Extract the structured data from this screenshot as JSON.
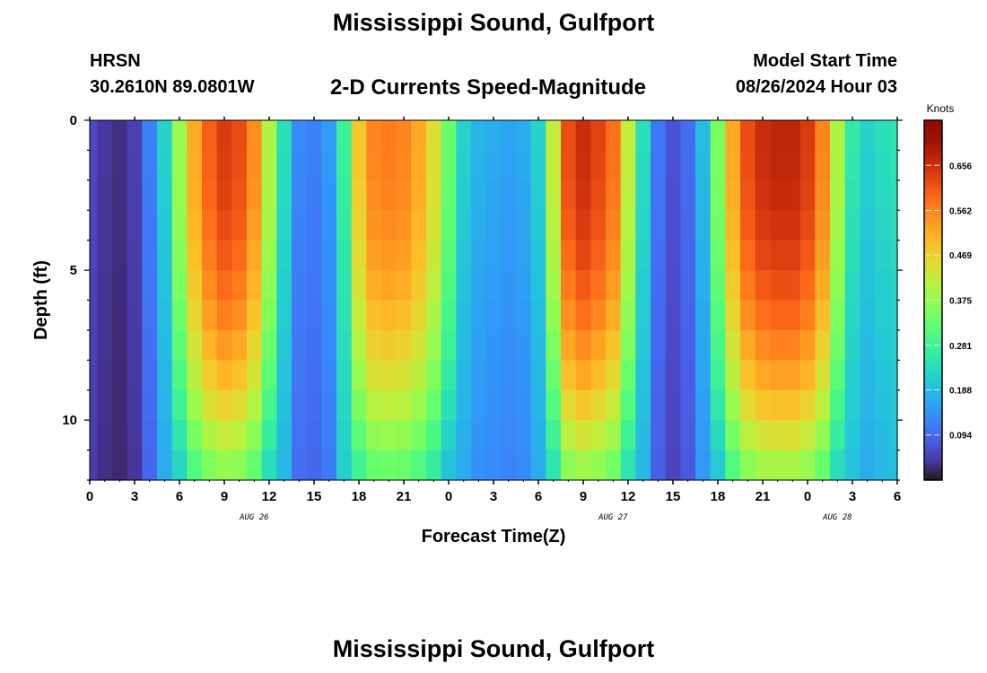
{
  "header": {
    "title": "Mississippi Sound, Gulfport",
    "station": "HRSN",
    "coords": "30.2610N  89.0801W",
    "subtitle": "2-D Currents Speed-Magnitude",
    "model_start_label": "Model Start Time",
    "model_start_value": "08/26/2024 Hour 03"
  },
  "footer": {
    "title": "Mississippi Sound, Gulfport"
  },
  "chart_data": {
    "type": "heatmap",
    "xlabel": "Forecast Time(Z)",
    "ylabel": "Depth (ft)",
    "x_range_hours": [
      0,
      54
    ],
    "x_tick_labels": [
      "0",
      "3",
      "6",
      "9",
      "12",
      "15",
      "18",
      "21",
      "0",
      "3",
      "6",
      "9",
      "12",
      "15",
      "18",
      "21",
      "0",
      "3",
      "6"
    ],
    "date_labels": [
      "AUG 26",
      "AUG 27",
      "AUG 28"
    ],
    "date_label_hours": [
      11,
      35,
      50
    ],
    "y_range_ft": [
      0,
      12
    ],
    "y_reversed": true,
    "y_tick_labels": [
      "0",
      "5",
      "10"
    ],
    "y_tick_values": [
      0,
      5,
      10
    ],
    "depth_levels_ft": [
      0.5,
      1.5,
      2.5,
      3.5,
      4.5,
      5.5,
      6.5,
      7.5,
      8.5,
      9.5,
      10.5,
      11.5
    ],
    "time_step_hours": 1,
    "surface_speed_profile_knots": [
      0.06,
      0.04,
      0.03,
      0.05,
      0.12,
      0.22,
      0.38,
      0.52,
      0.6,
      0.64,
      0.62,
      0.55,
      0.4,
      0.24,
      0.13,
      0.12,
      0.15,
      0.28,
      0.48,
      0.56,
      0.57,
      0.56,
      0.52,
      0.45,
      0.33,
      0.22,
      0.18,
      0.17,
      0.16,
      0.17,
      0.22,
      0.42,
      0.62,
      0.66,
      0.63,
      0.58,
      0.42,
      0.24,
      0.11,
      0.07,
      0.1,
      0.19,
      0.35,
      0.52,
      0.62,
      0.66,
      0.67,
      0.67,
      0.64,
      0.56,
      0.4,
      0.26,
      0.22,
      0.24,
      0.25
    ],
    "colorbar": {
      "title": "Knots",
      "range": [
        0,
        0.75
      ],
      "tick_labels": [
        "0.656",
        "0.562",
        "0.469",
        "0.375",
        "0.281",
        "0.188",
        "0.094"
      ],
      "tick_values": [
        0.656,
        0.562,
        0.469,
        0.375,
        0.281,
        0.188,
        0.094
      ],
      "colormap": "turbo"
    },
    "grid": false
  }
}
